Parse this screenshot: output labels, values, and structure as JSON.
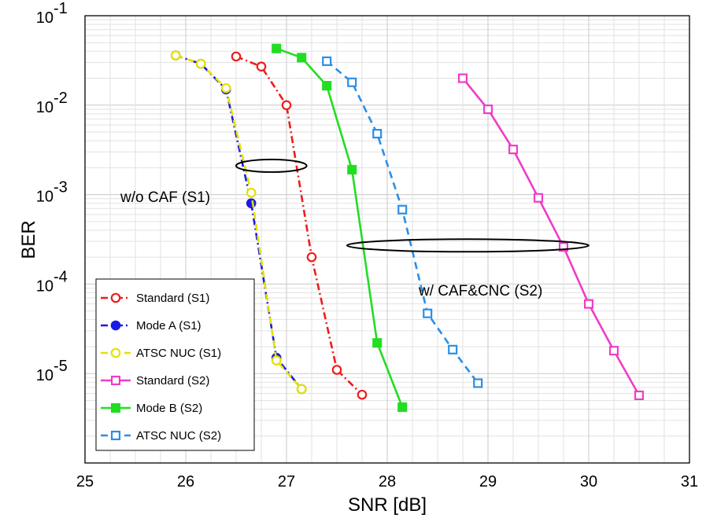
{
  "chart_data": {
    "type": "line",
    "xlabel": "SNR [dB]",
    "ylabel": "BER",
    "xlim": [
      25,
      31
    ],
    "ylim_log10": [
      -6,
      -1
    ],
    "yscale": "log",
    "x_ticks": [
      "25",
      "26",
      "27",
      "28",
      "29",
      "30",
      "31"
    ],
    "y_ticks": [
      {
        "base": "10",
        "exp": "-1"
      },
      {
        "base": "10",
        "exp": "-2"
      },
      {
        "base": "10",
        "exp": "-3"
      },
      {
        "base": "10",
        "exp": "-4"
      },
      {
        "base": "10",
        "exp": "-5"
      }
    ],
    "grid": true,
    "legend_position": "bottom-left",
    "series": [
      {
        "name": "Standard (S1)",
        "color": "#ee1c1c",
        "dash": "dashdot",
        "marker": "circle-open",
        "x": [
          26.5,
          26.75,
          27.0,
          27.25,
          27.5,
          27.75
        ],
        "y": [
          0.035,
          0.027,
          0.01,
          0.0002,
          1.1e-05,
          5.8e-06
        ]
      },
      {
        "name": "Mode A (S1)",
        "color": "#1a1ae6",
        "dash": "dashdot",
        "marker": "circle-filled",
        "x": [
          25.9,
          26.15,
          26.4,
          26.65,
          26.9,
          27.15
        ],
        "y": [
          0.036,
          0.029,
          0.015,
          0.0008,
          1.5e-05,
          6.7e-06
        ]
      },
      {
        "name": "ATSC NUC (S1)",
        "color": "#e5e000",
        "dash": "dashed",
        "marker": "circle-open",
        "x": [
          25.9,
          26.15,
          26.4,
          26.65,
          26.9,
          27.15
        ],
        "y": [
          0.036,
          0.029,
          0.0155,
          0.00105,
          1.4e-05,
          6.7e-06
        ]
      },
      {
        "name": "Standard (S2)",
        "color": "#f03cc8",
        "dash": "solid",
        "marker": "square-open",
        "x": [
          28.75,
          29.0,
          29.25,
          29.5,
          29.75,
          30.0,
          30.25,
          30.5
        ],
        "y": [
          0.02,
          0.009,
          0.0032,
          0.00092,
          0.00026,
          6e-05,
          1.8e-05,
          5.7e-06
        ]
      },
      {
        "name": "Mode B (S2)",
        "color": "#22dd22",
        "dash": "solid",
        "marker": "square-filled",
        "x": [
          26.9,
          27.15,
          27.4,
          27.65,
          27.9,
          28.15
        ],
        "y": [
          0.043,
          0.034,
          0.0165,
          0.0019,
          2.2e-05,
          4.2e-06
        ]
      },
      {
        "name": "ATSC NUC (S2)",
        "color": "#2a8ee8",
        "dash": "dashed",
        "marker": "square-open",
        "x": [
          27.4,
          27.65,
          27.9,
          28.15,
          28.4,
          28.65,
          28.9
        ],
        "y": [
          0.031,
          0.018,
          0.0048,
          0.00068,
          4.7e-05,
          1.85e-05,
          7.8e-06
        ]
      }
    ],
    "annotations": [
      {
        "text": "w/o CAF (S1)"
      },
      {
        "text": "w/ CAF&CNC (S2)"
      }
    ],
    "ellipses": [
      {
        "label": "w/o CAF (S1)",
        "cx": 26.85,
        "y": 0.0021,
        "rx_data": 0.35
      },
      {
        "label": "w/ CAF&CNC (S2)",
        "cx": 28.8,
        "y": 0.00027,
        "rx_data": 1.2
      }
    ]
  }
}
